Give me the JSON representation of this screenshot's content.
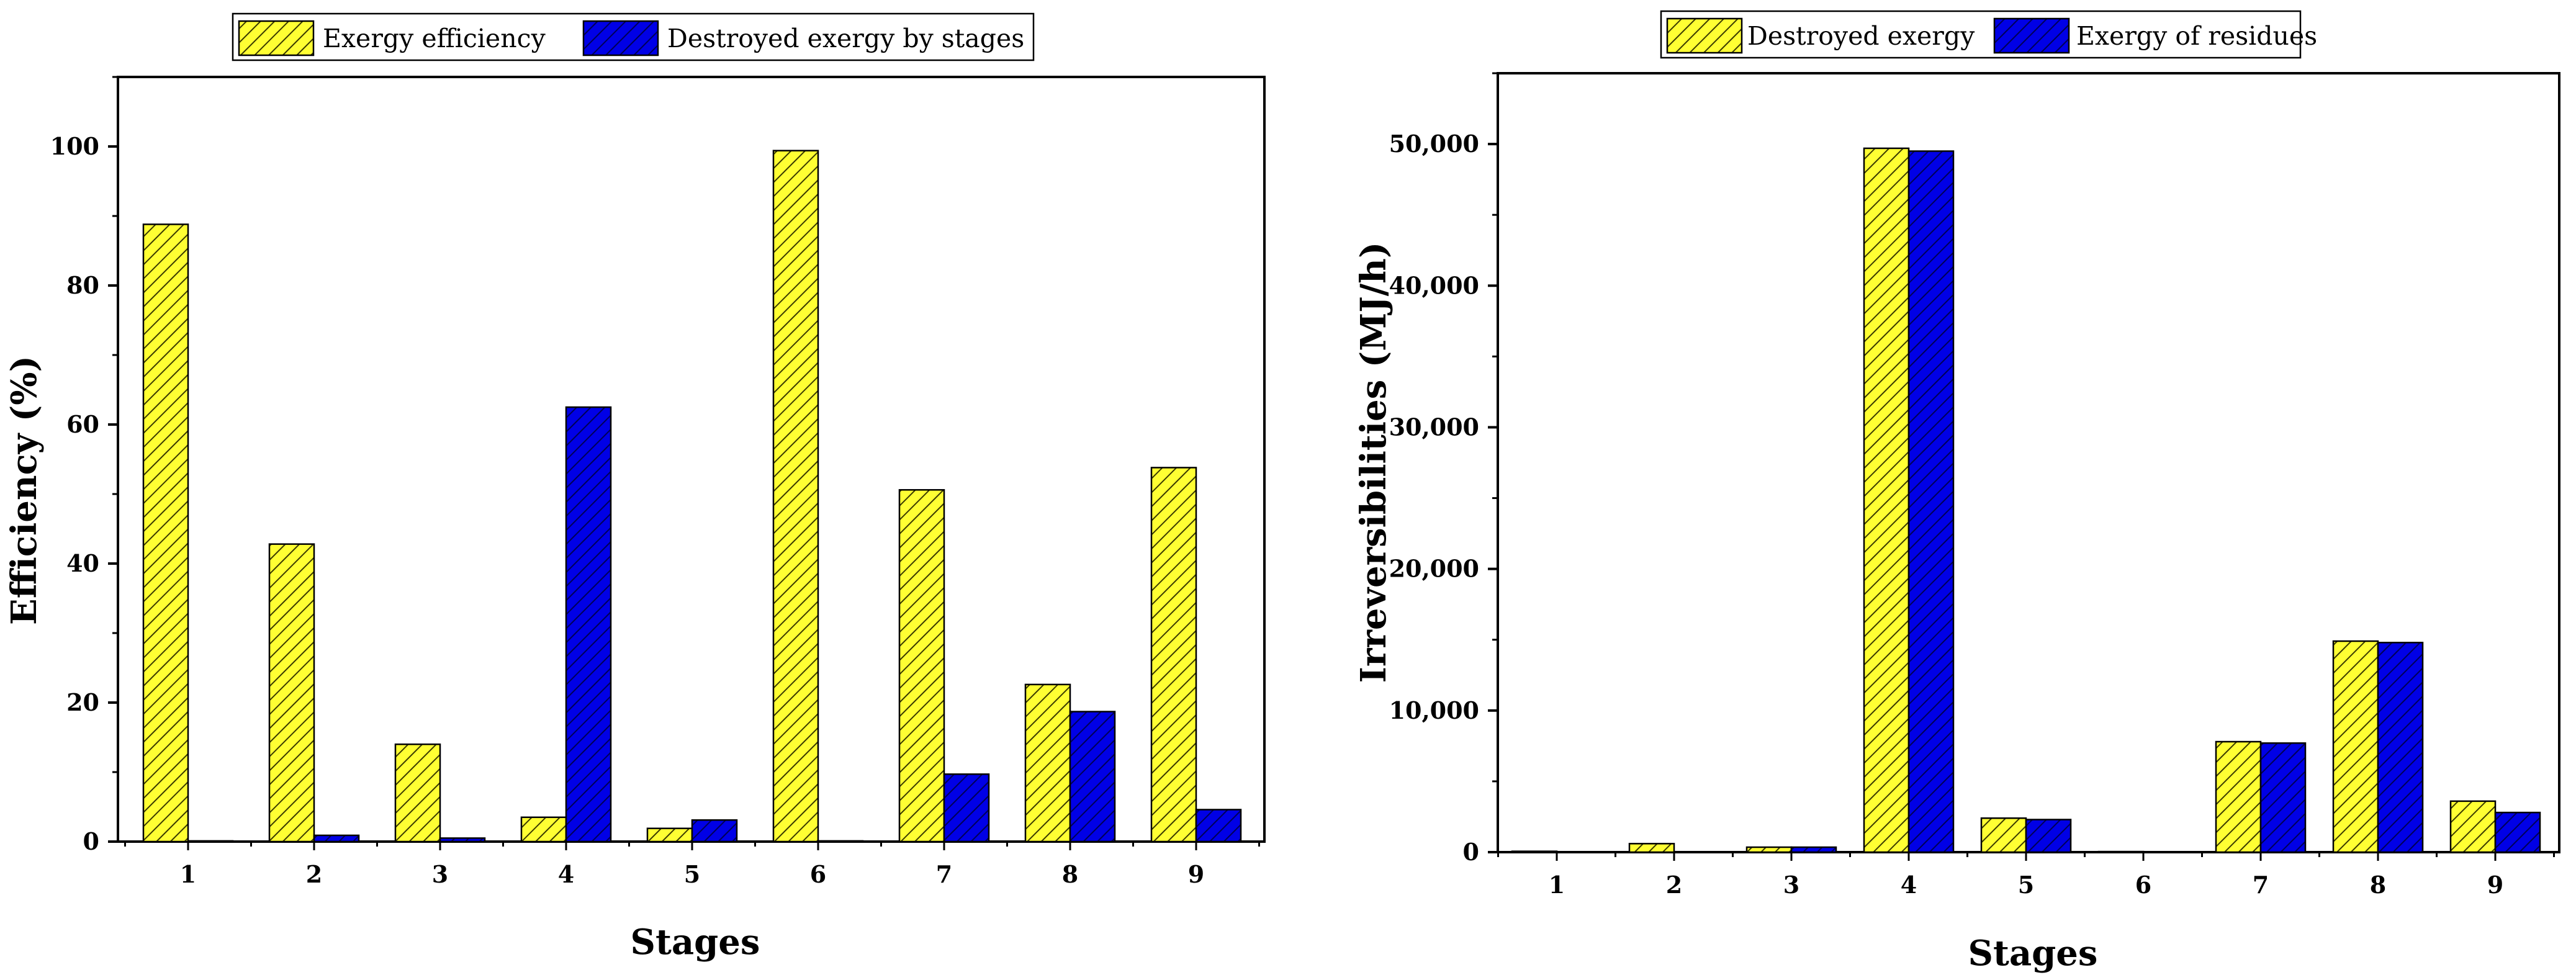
{
  "colors": {
    "series_a": "#ffff33",
    "series_b": "#0000e6",
    "hatch_on_yellow": "#3a3a00",
    "hatch_on_blue": "#000055",
    "axis": "#000000",
    "background": "#ffffff"
  },
  "chart_data": [
    {
      "type": "bar",
      "title": "",
      "xlabel": "Stages",
      "ylabel": "Efficiency (%)",
      "categories": [
        "1",
        "2",
        "3",
        "4",
        "5",
        "6",
        "7",
        "8",
        "9"
      ],
      "ylim": [
        0,
        110
      ],
      "yticks": [
        0,
        20,
        40,
        60,
        80,
        100
      ],
      "ytick_labels": [
        "0",
        "20",
        "40",
        "60",
        "80",
        "100"
      ],
      "grid": false,
      "legend_position": "top-center",
      "series": [
        {
          "name": "Exergy efficiency",
          "values": [
            88.8,
            42.8,
            14.0,
            3.5,
            1.9,
            99.4,
            50.6,
            22.6,
            53.8
          ]
        },
        {
          "name": "Destroyed exergy by stages",
          "values": [
            0.1,
            0.9,
            0.5,
            62.5,
            3.1,
            0.1,
            9.7,
            18.7,
            4.6
          ]
        }
      ]
    },
    {
      "type": "bar",
      "title": "",
      "xlabel": "Stages",
      "ylabel": "Irreversibilities (MJ/h)",
      "categories": [
        "1",
        "2",
        "3",
        "4",
        "5",
        "6",
        "7",
        "8",
        "9"
      ],
      "ylim": [
        0,
        55000
      ],
      "yticks": [
        0,
        10000,
        20000,
        30000,
        40000,
        50000
      ],
      "ytick_labels": [
        "0",
        "10,000",
        "20,000",
        "30,000",
        "40,000",
        "50,000"
      ],
      "grid": false,
      "legend_position": "top-center",
      "series": [
        {
          "name": "Destroyed exergy",
          "values": [
            60,
            600,
            350,
            49700,
            2400,
            40,
            7800,
            14900,
            3600
          ]
        },
        {
          "name": "Exergy of residues",
          "values": [
            0,
            0,
            350,
            49500,
            2300,
            0,
            7700,
            14800,
            2800
          ]
        }
      ]
    }
  ]
}
